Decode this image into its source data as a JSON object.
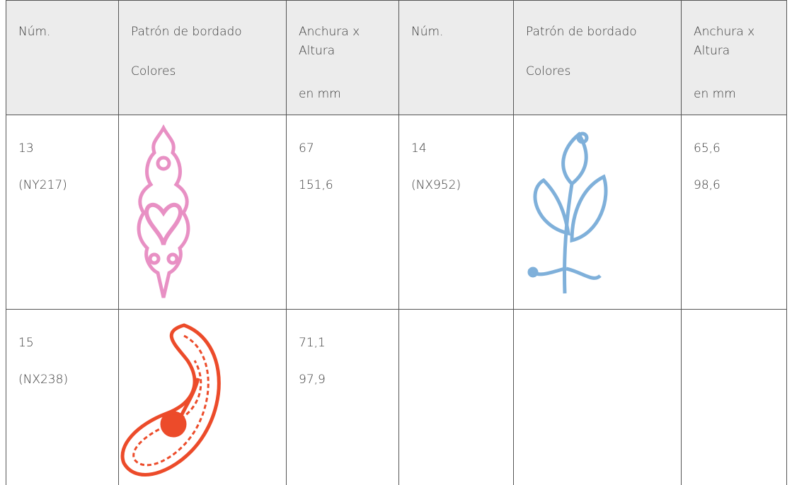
{
  "header": [
    {
      "lines": [
        "Núm."
      ]
    },
    {
      "lines": [
        "Patrón de bordado",
        "Colores"
      ]
    },
    {
      "lines": [
        "Anchura x",
        "Altura",
        "en mm"
      ]
    },
    {
      "lines": [
        "Núm."
      ]
    },
    {
      "lines": [
        "Patrón de bordado",
        "Colores"
      ]
    },
    {
      "lines": [
        "Anchura x",
        "Altura",
        "en mm"
      ]
    }
  ],
  "entries": [
    {
      "number": "13",
      "code": "(NY217)",
      "size": [
        "67",
        "151,6"
      ]
    },
    {
      "number": "14",
      "code": "(NX952)",
      "size": [
        "65,6",
        "98,6"
      ]
    },
    {
      "number": "15",
      "code": "(NX238)",
      "size": [
        "71,1",
        "97,9"
      ]
    }
  ]
}
